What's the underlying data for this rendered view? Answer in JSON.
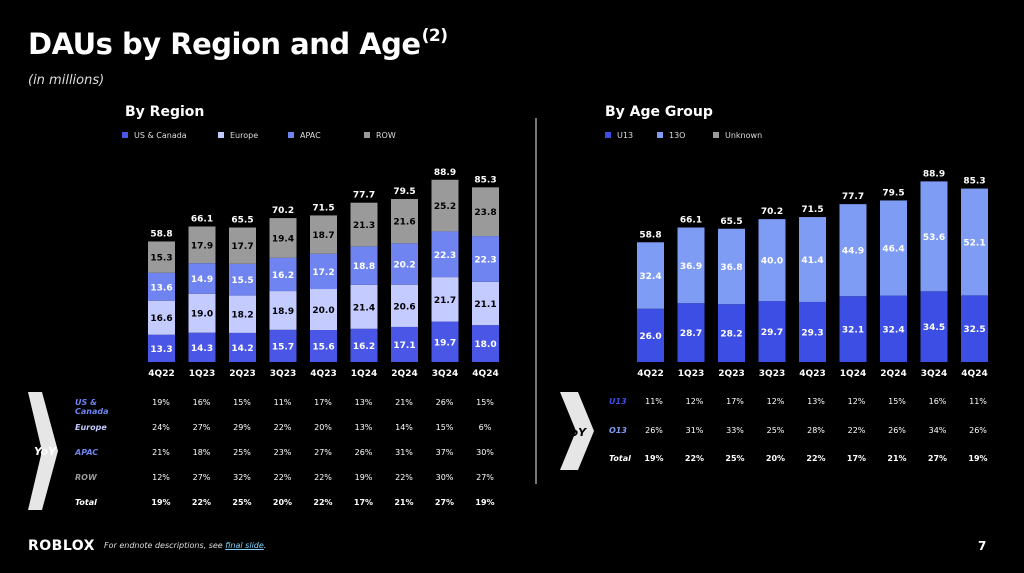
{
  "title": "DAUs by Region and Age",
  "title_sup": "(2)",
  "subtitle": "(in millions)",
  "colors": {
    "us_canada": "#4a57e6",
    "europe": "#c4cbff",
    "apac": "#6f84f0",
    "row": "#9a9a9a",
    "u13": "#3d4ee4",
    "o13": "#7f9cf4"
  },
  "chart_data": [
    {
      "type": "bar",
      "stacked": true,
      "title": "By Region",
      "categories": [
        "4Q22",
        "1Q23",
        "2Q23",
        "3Q23",
        "4Q23",
        "1Q24",
        "2Q24",
        "3Q24",
        "4Q24"
      ],
      "series": [
        {
          "name": "US & Canada",
          "values": [
            13.3,
            14.3,
            14.2,
            15.7,
            15.6,
            16.2,
            17.1,
            19.7,
            18.0
          ],
          "labels": [
            "13.3",
            "14.3",
            "14.2",
            "15.7",
            "15.6",
            "16.2",
            "17.1",
            "19.7",
            "18.0"
          ]
        },
        {
          "name": "Europe",
          "values": [
            16.6,
            19.0,
            18.2,
            18.9,
            20.0,
            21.4,
            20.6,
            21.7,
            21.1
          ],
          "labels": [
            "16.6",
            "19.0",
            "18.2",
            "18.9",
            "20.0",
            "21.4",
            "20.6",
            "21.7",
            "21.1"
          ]
        },
        {
          "name": "APAC",
          "values": [
            13.6,
            14.9,
            15.5,
            16.2,
            17.2,
            18.8,
            20.2,
            22.3,
            22.3
          ],
          "labels": [
            "13.6",
            "14.9",
            "15.5",
            "16.2",
            "17.2",
            "18.8",
            "20.2",
            "22.3",
            "22.3"
          ]
        },
        {
          "name": "ROW",
          "values": [
            15.3,
            17.9,
            17.7,
            19.4,
            18.7,
            21.3,
            21.6,
            25.2,
            23.8
          ],
          "labels": [
            "15.3",
            "17.9",
            "17.7",
            "19.4",
            "18.7",
            "21.3",
            "21.6",
            "25.2",
            "23.8"
          ]
        }
      ],
      "totals": [
        58.8,
        66.1,
        65.5,
        70.2,
        71.5,
        77.7,
        79.5,
        88.9,
        85.3
      ],
      "legend_position": "top-left",
      "ylim": [
        0,
        95
      ],
      "grid": false
    },
    {
      "type": "bar",
      "stacked": true,
      "title": "By Age Group",
      "categories": [
        "4Q22",
        "1Q23",
        "2Q23",
        "3Q23",
        "4Q23",
        "1Q24",
        "2Q24",
        "3Q24",
        "4Q24"
      ],
      "series": [
        {
          "name": "U13",
          "values": [
            26.0,
            28.7,
            28.2,
            29.7,
            29.3,
            32.1,
            32.4,
            34.5,
            32.5
          ],
          "labels": [
            "26.0",
            "28.7",
            "28.2",
            "29.7",
            "29.3",
            "32.1",
            "32.4",
            "34.5",
            "32.5"
          ]
        },
        {
          "name": "13O",
          "values": [
            32.4,
            36.9,
            36.8,
            40.0,
            41.4,
            44.9,
            46.4,
            53.6,
            52.1
          ],
          "labels": [
            "32.4",
            "36.9",
            "36.8",
            "40.0",
            "41.4",
            "44.9",
            "46.4",
            "53.6",
            "52.1"
          ]
        }
      ],
      "legend_extra": [
        "Unknown"
      ],
      "totals": [
        58.8,
        66.1,
        65.5,
        70.2,
        71.5,
        77.7,
        79.5,
        88.9,
        85.3
      ],
      "legend_position": "top-left",
      "ylim": [
        0,
        95
      ],
      "grid": false
    }
  ],
  "yoy": {
    "label": "YoY",
    "region": [
      {
        "label": "US & Canada",
        "values": [
          "19%",
          "16%",
          "15%",
          "11%",
          "17%",
          "13%",
          "21%",
          "26%",
          "15%"
        ]
      },
      {
        "label": "Europe",
        "values": [
          "24%",
          "27%",
          "29%",
          "22%",
          "20%",
          "13%",
          "14%",
          "15%",
          "6%"
        ]
      },
      {
        "label": "APAC",
        "values": [
          "21%",
          "18%",
          "25%",
          "23%",
          "27%",
          "26%",
          "31%",
          "37%",
          "30%"
        ]
      },
      {
        "label": "ROW",
        "values": [
          "12%",
          "27%",
          "32%",
          "22%",
          "22%",
          "19%",
          "22%",
          "30%",
          "27%"
        ]
      },
      {
        "label": "Total",
        "values": [
          "19%",
          "22%",
          "25%",
          "20%",
          "22%",
          "17%",
          "21%",
          "27%",
          "19%"
        ]
      }
    ],
    "age": [
      {
        "label": "U13",
        "values": [
          "11%",
          "12%",
          "17%",
          "12%",
          "13%",
          "12%",
          "15%",
          "16%",
          "11%"
        ]
      },
      {
        "label": "O13",
        "values": [
          "26%",
          "31%",
          "33%",
          "25%",
          "28%",
          "22%",
          "26%",
          "34%",
          "26%"
        ]
      },
      {
        "label": "Total",
        "values": [
          "19%",
          "22%",
          "25%",
          "20%",
          "22%",
          "17%",
          "21%",
          "27%",
          "19%"
        ]
      }
    ]
  },
  "footer": {
    "text": "For endnote descriptions, see ",
    "link": "final slide",
    "end": "."
  },
  "logo": "ROBLOX",
  "page_number": "7"
}
